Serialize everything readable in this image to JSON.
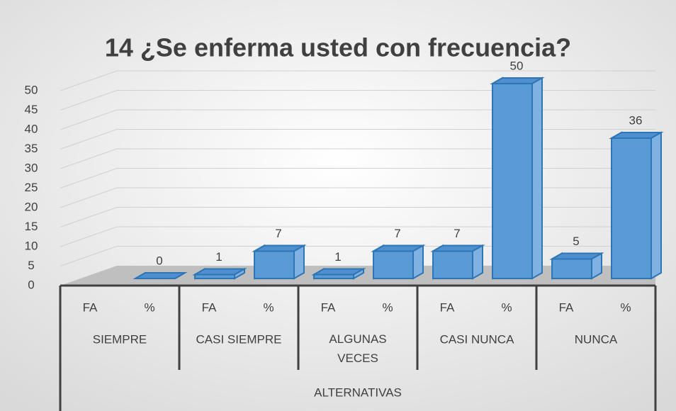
{
  "chart_data": {
    "type": "bar3d",
    "title": "14 ¿Se enferma usted con frecuencia?",
    "categories": [
      "FA",
      "%",
      "FA",
      "%",
      "FA",
      "%",
      "FA",
      "%",
      "FA",
      "%"
    ],
    "group_labels": [
      "SIEMPRE",
      "CASI SIEMPRE",
      "ALGUNAS VECES",
      "CASI NUNCA",
      "NUNCA"
    ],
    "x_label": "ALTERNATIVAS",
    "values": [
      null,
      0,
      1,
      7,
      1,
      7,
      7,
      50,
      5,
      36
    ],
    "color": "#5b9bd5",
    "ylim": [
      0,
      50
    ],
    "yticks": [
      0,
      5,
      10,
      15,
      20,
      25,
      30,
      35,
      40,
      45,
      50
    ],
    "grid": true
  }
}
